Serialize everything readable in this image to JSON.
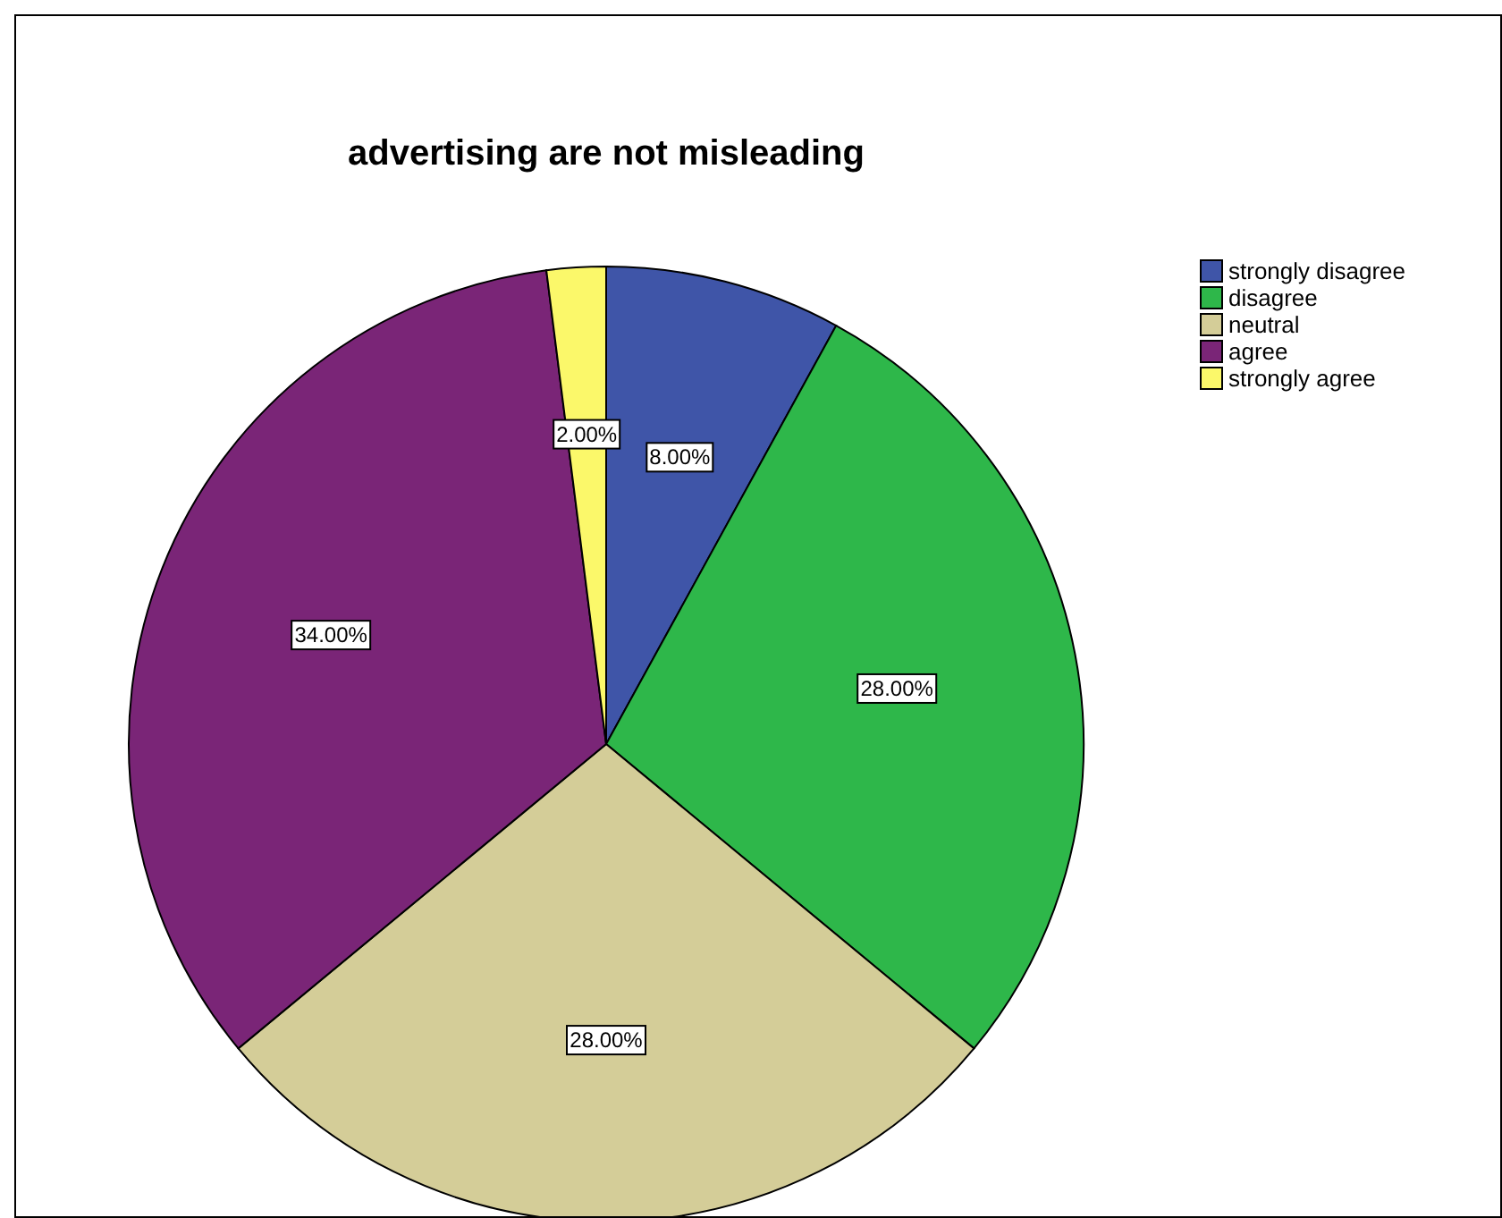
{
  "chart_data": {
    "type": "pie",
    "title": "advertising are not misleading",
    "categories": [
      "strongly disagree",
      "disagree",
      "neutral",
      "agree",
      "strongly agree"
    ],
    "values": [
      8,
      28,
      28,
      34,
      2
    ],
    "value_labels": [
      "8.00%",
      "28.00%",
      "28.00%",
      "34.00%",
      "2.00%"
    ],
    "colors": [
      "#3f55a8",
      "#2eb74a",
      "#d4cd98",
      "#7a2577",
      "#fbf86a"
    ],
    "legend": "top right"
  }
}
